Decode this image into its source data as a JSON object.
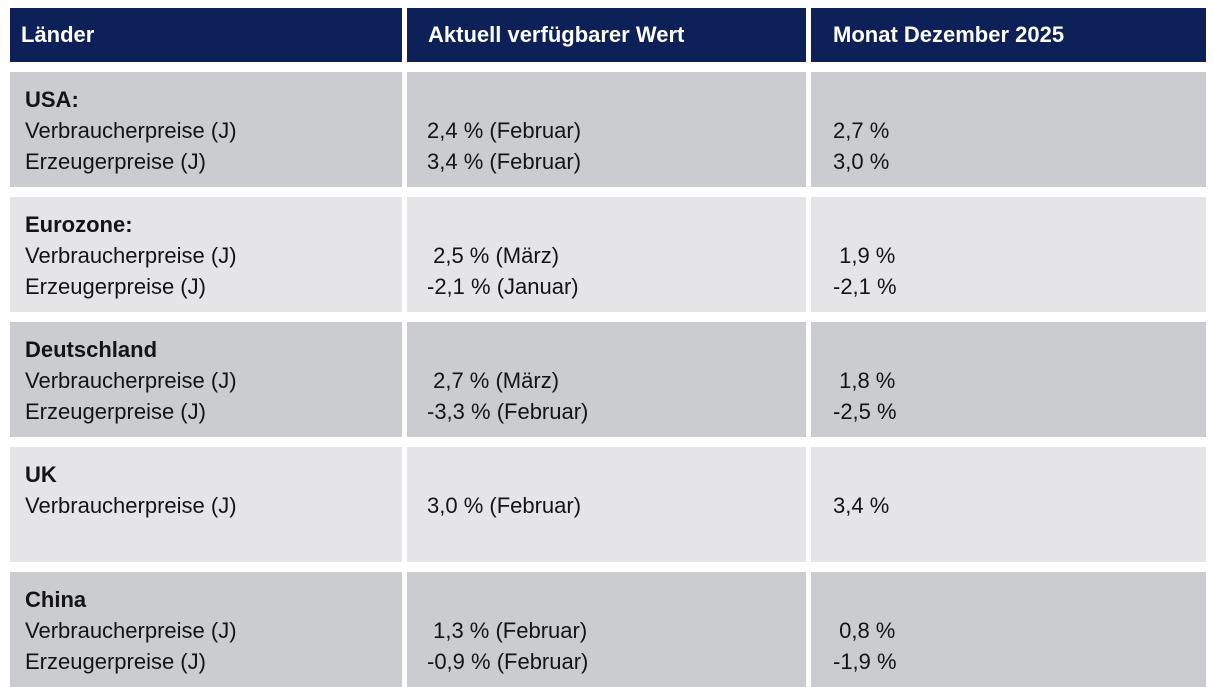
{
  "header": {
    "columns": [
      "Länder",
      "Aktuell verfügbarer Wert",
      "Monat Dezember 2025"
    ]
  },
  "rows": [
    {
      "country": "USA:",
      "labels": "Verbraucherpreise (J)\nErzeugerpreise (J)",
      "current": "2,4 % (Februar)\n3,4 % (Februar)",
      "december": "2,7 %\n3,0 %"
    },
    {
      "country": "Eurozone:",
      "labels": "Verbraucherpreise (J)\nErzeugerpreise (J)",
      "current": " 2,5 % (März)\n-2,1 % (Januar)",
      "december": " 1,9 %\n-2,1 %"
    },
    {
      "country": "Deutschland",
      "labels": "Verbraucherpreise (J)\nErzeugerpreise (J)",
      "current": " 2,7 % (März)\n-3,3 % (Februar)",
      "december": " 1,8 %\n-2,5 %"
    },
    {
      "country": "UK",
      "labels": "Verbraucherpreise (J)",
      "current": "3,0 % (Februar)",
      "december": "3,4 %"
    },
    {
      "country": "China",
      "labels": "Verbraucherpreise (J)\nErzeugerpreise (J)",
      "current": " 1,3 % (Februar)\n-0,9 % (Februar)",
      "december": " 0,8 %\n-1,9 %"
    }
  ],
  "colors": {
    "header_bg": "#0d2057",
    "header_text": "#ffffff",
    "row_dark": "#cbccd0",
    "row_light": "#e5e5e8",
    "text": "#141414"
  }
}
